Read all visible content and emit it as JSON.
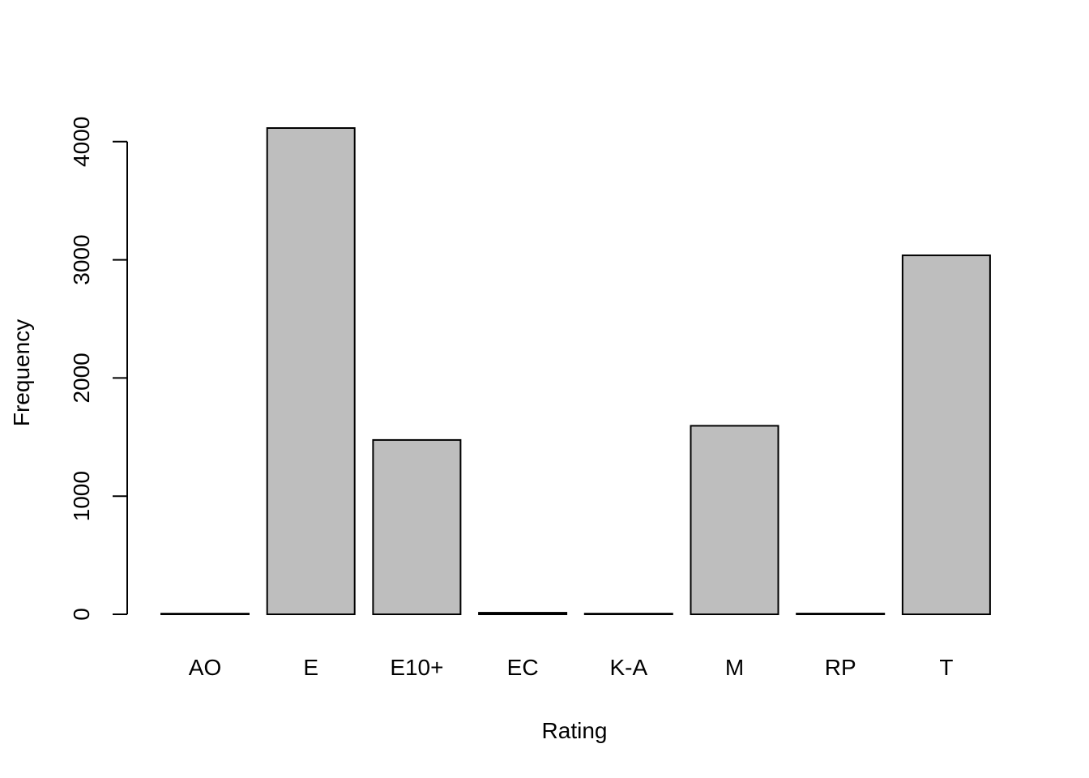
{
  "chart_data": {
    "type": "bar",
    "title": "",
    "xlabel": "Rating",
    "ylabel": "Frequency",
    "categories": [
      "AO",
      "E",
      "E10+",
      "EC",
      "K-A",
      "M",
      "RP",
      "T"
    ],
    "values": [
      1,
      4115,
      1475,
      13,
      3,
      1595,
      6,
      3038
    ],
    "yticks": [
      0,
      1000,
      2000,
      3000,
      4000
    ],
    "ylim": [
      0,
      4115
    ],
    "grid": false,
    "legend": "none",
    "colors": {
      "bar_fill": "#bebebe",
      "bar_stroke": "#000000",
      "axis": "#000000",
      "background": "#ffffff"
    }
  }
}
